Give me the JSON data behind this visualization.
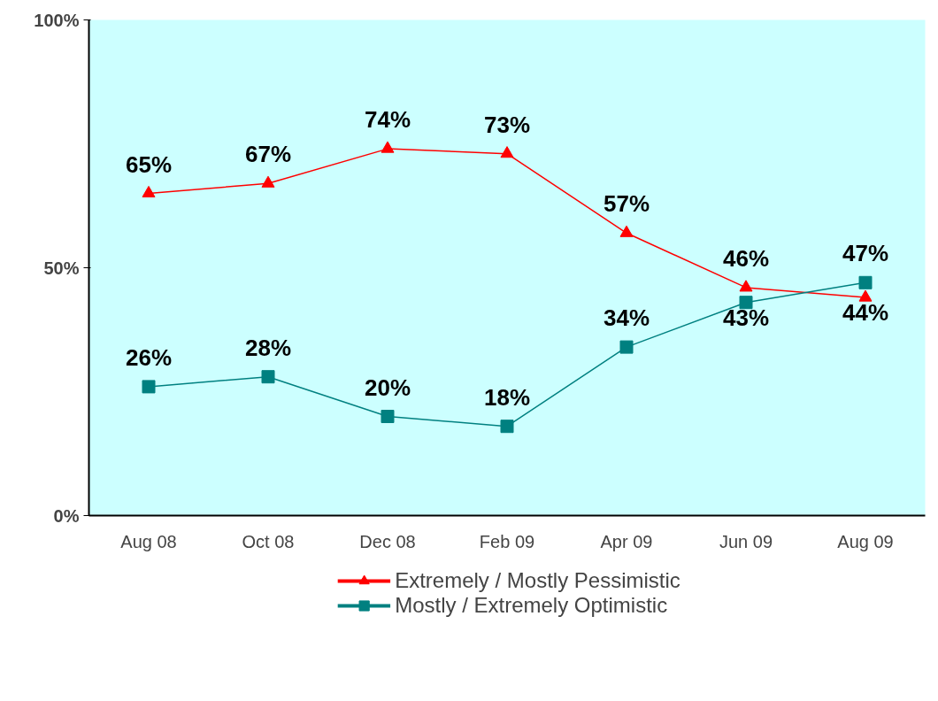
{
  "chart_data": {
    "type": "line",
    "categories": [
      "Aug 08",
      "Oct 08",
      "Dec 08",
      "Feb 09",
      "Apr 09",
      "Jun 09",
      "Aug 09"
    ],
    "series": [
      {
        "name": "Extremely / Mostly Pessimistic",
        "color": "#ff0000",
        "marker": "triangle",
        "values": [
          65,
          67,
          74,
          73,
          57,
          46,
          44
        ],
        "value_labels": [
          "65%",
          "67%",
          "74%",
          "73%",
          "57%",
          "46%",
          "44%"
        ]
      },
      {
        "name": "Mostly / Extremely Optimistic",
        "color": "#008080",
        "marker": "square",
        "values": [
          26,
          28,
          20,
          18,
          34,
          43,
          47
        ],
        "value_labels": [
          "26%",
          "28%",
          "20%",
          "18%",
          "34%",
          "43%",
          "47%"
        ]
      }
    ],
    "ylim": [
      0,
      100
    ],
    "yticks": [
      {
        "value": 0,
        "label": "0%"
      },
      {
        "value": 50,
        "label": "50%"
      },
      {
        "value": 100,
        "label": "100%"
      }
    ],
    "legend": "bottom",
    "line_style": "solid"
  }
}
